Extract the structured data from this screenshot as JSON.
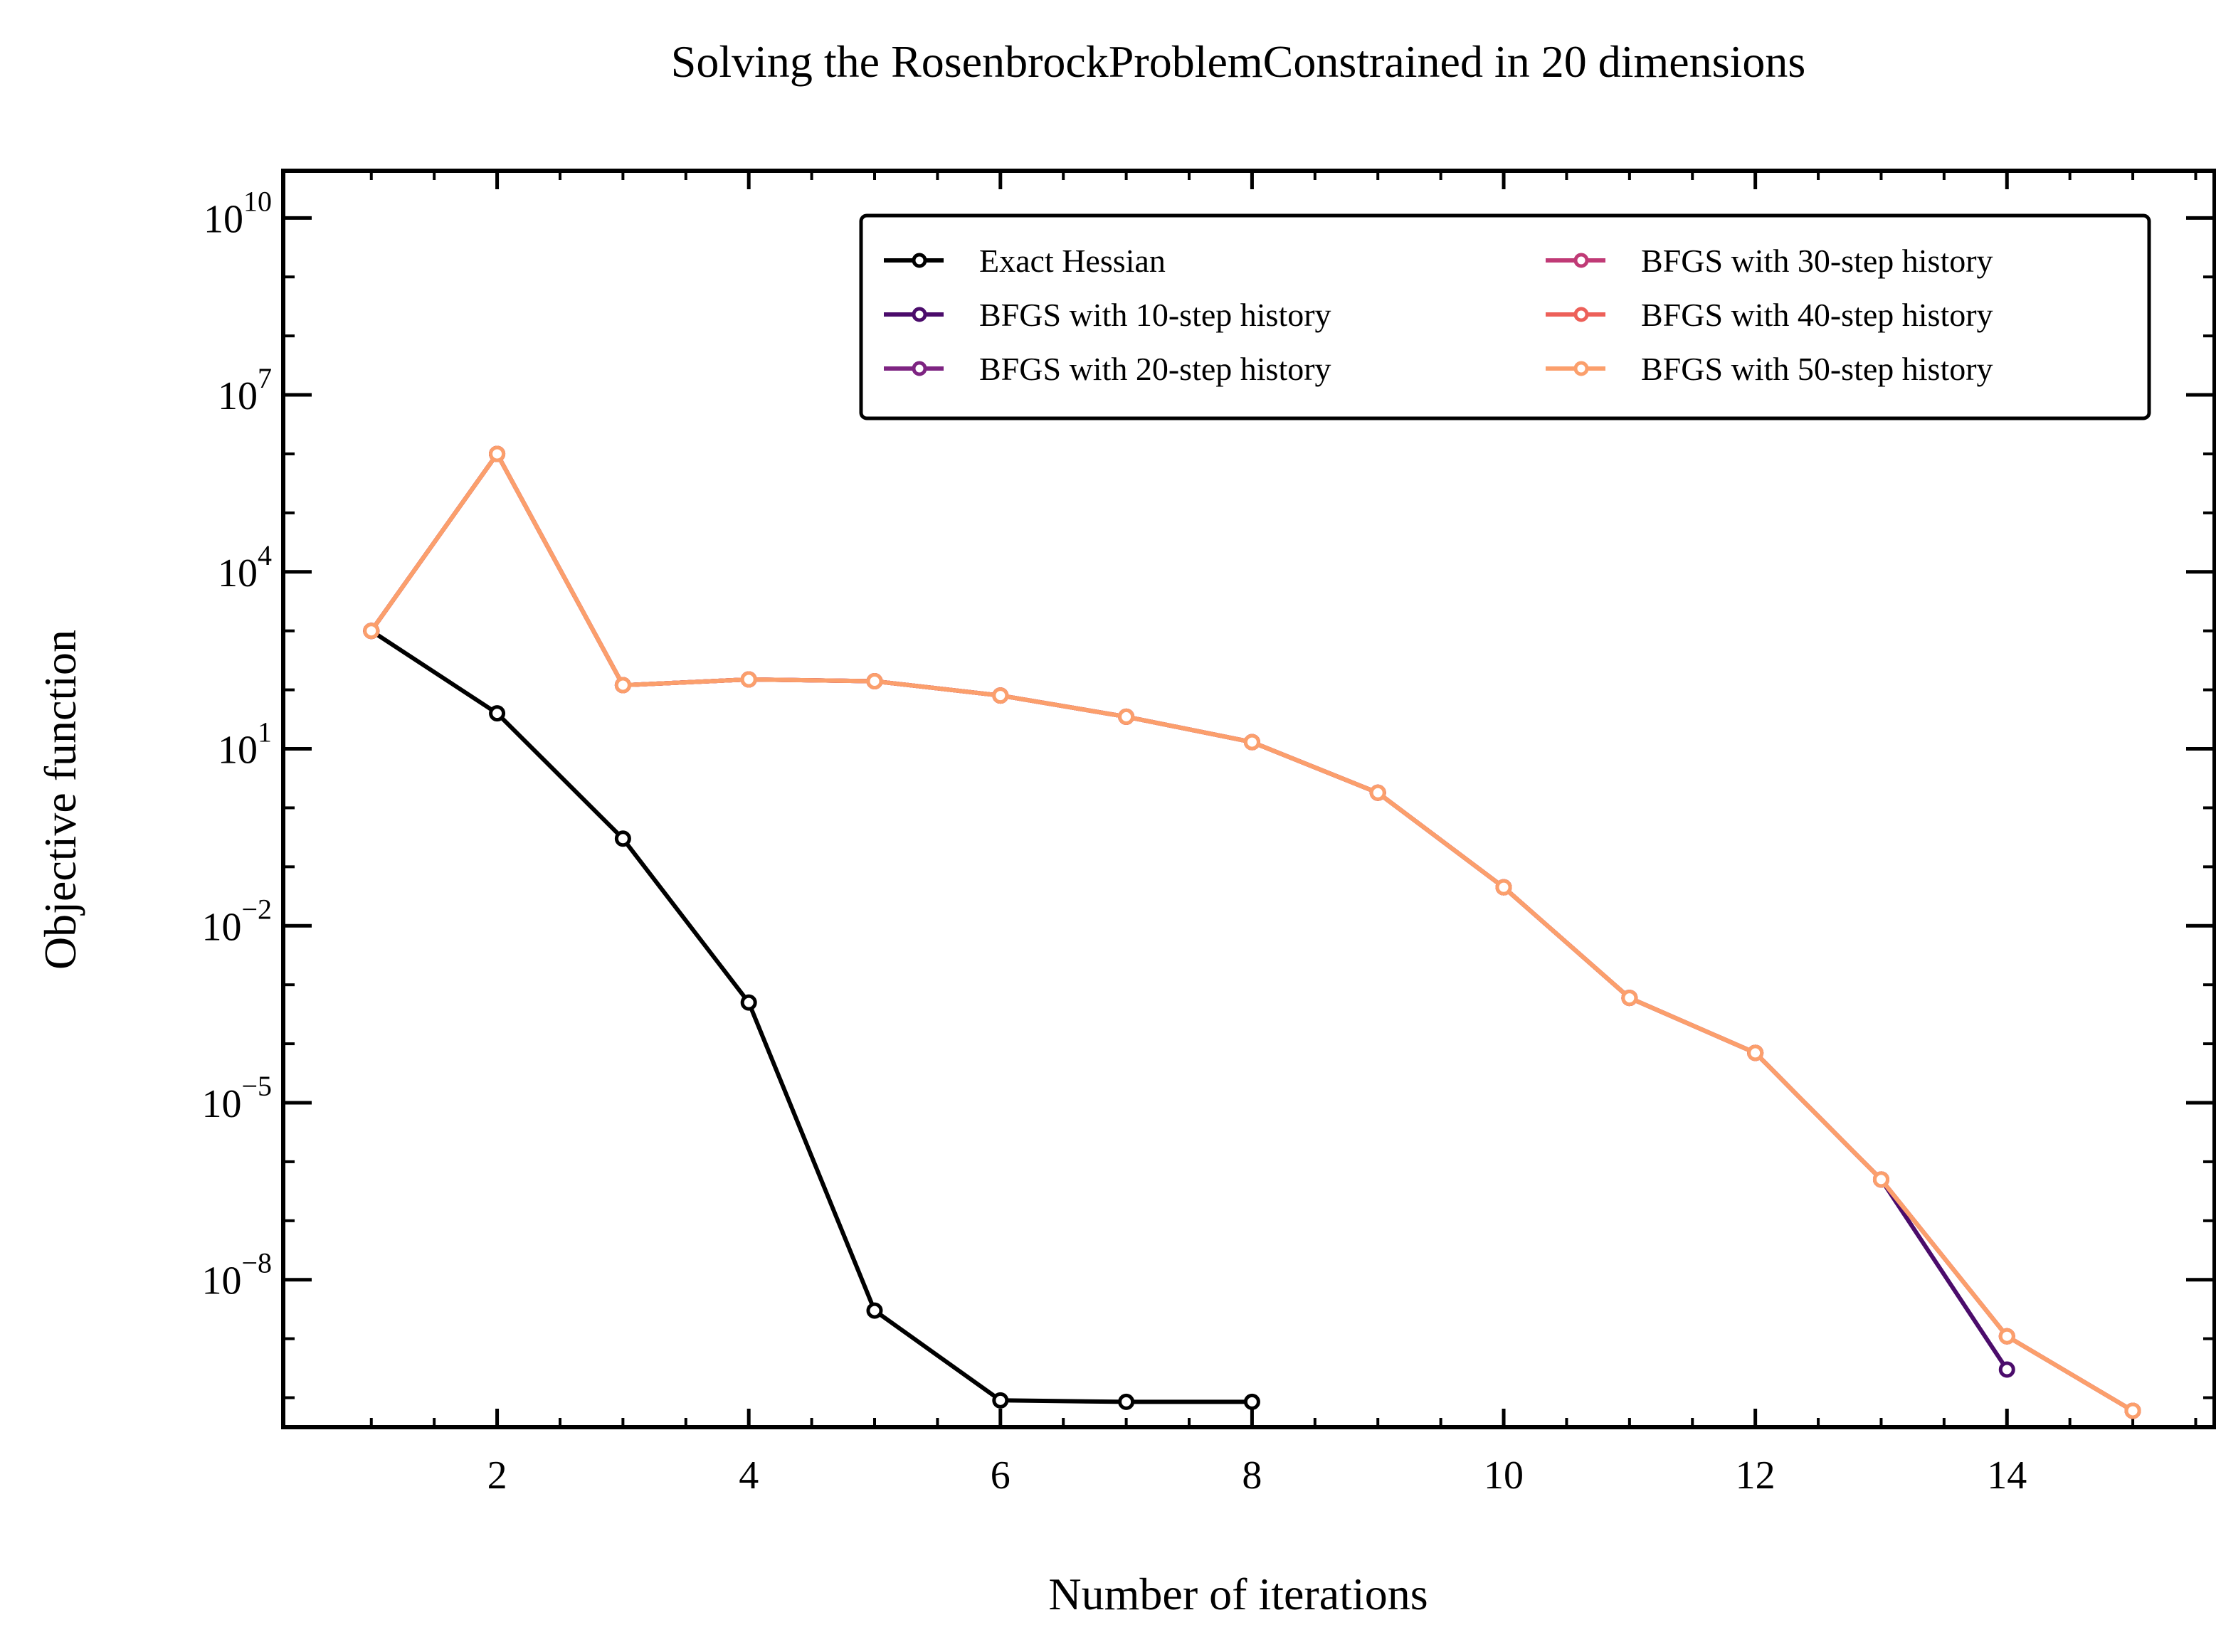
{
  "chart_data": {
    "type": "line",
    "title": "Solving the RosenbrockProblemConstrained in 20 dimensions",
    "xlabel": "Number of iterations",
    "ylabel": "Objective function",
    "xlim": [
      0.3,
      15.65
    ],
    "ylim_log10": [
      -10.5,
      10.8
    ],
    "yscale": "log",
    "x_ticks": [
      2,
      4,
      6,
      8,
      10,
      12,
      14
    ],
    "x_tick_labels": [
      "2",
      "4",
      "6",
      "8",
      "10",
      "12",
      "14"
    ],
    "y_ticks": [
      {
        "base": "10",
        "exp": "10"
      },
      {
        "base": "10",
        "exp": "7"
      },
      {
        "base": "10",
        "exp": "4"
      },
      {
        "base": "10",
        "exp": "1"
      },
      {
        "base": "10",
        "exp": "−2"
      },
      {
        "base": "10",
        "exp": "−5"
      },
      {
        "base": "10",
        "exp": "−8"
      }
    ],
    "y_tick_exponents": [
      10,
      7,
      4,
      1,
      -2,
      -5,
      -8
    ],
    "legend_location": "upper right",
    "series": [
      {
        "name": "Exact Hessian",
        "color": "#000000",
        "x": [
          1,
          2,
          3,
          4,
          5,
          6,
          7,
          8
        ],
        "y": [
          1000,
          40,
          0.3,
          0.0005,
          3e-09,
          9e-11,
          8.5e-11,
          8.5e-11
        ]
      },
      {
        "name": "BFGS with 10-step history",
        "color": "#4b0c6b",
        "x": [
          1,
          2,
          3,
          4,
          5,
          6,
          7,
          8,
          9,
          10,
          11,
          12,
          13,
          14
        ],
        "y": [
          1000,
          1000000,
          120,
          150,
          140,
          80,
          35,
          13,
          1.8,
          0.045,
          0.0006,
          7e-05,
          5e-07,
          3e-10
        ]
      },
      {
        "name": "BFGS with 20-step history",
        "color": "#7e2482",
        "x": [
          1,
          2,
          3,
          4,
          5,
          6,
          7,
          8,
          9,
          10,
          11,
          12,
          13,
          14,
          15
        ],
        "y": [
          1000,
          1000000,
          120,
          150,
          140,
          80,
          35,
          13,
          1.8,
          0.045,
          0.0006,
          7e-05,
          5e-07,
          1.1e-09,
          6e-11
        ]
      },
      {
        "name": "BFGS with 30-step history",
        "color": "#c03a76",
        "x": [
          1,
          2,
          3,
          4,
          5,
          6,
          7,
          8,
          9,
          10,
          11,
          12,
          13,
          14,
          15
        ],
        "y": [
          1000,
          1000000,
          120,
          150,
          140,
          80,
          35,
          13,
          1.8,
          0.045,
          0.0006,
          7e-05,
          5e-07,
          1.1e-09,
          6e-11
        ]
      },
      {
        "name": "BFGS with 40-step history",
        "color": "#ed6059",
        "x": [
          1,
          2,
          3,
          4,
          5,
          6,
          7,
          8,
          9,
          10,
          11,
          12,
          13,
          14,
          15
        ],
        "y": [
          1000,
          1000000,
          120,
          150,
          140,
          80,
          35,
          13,
          1.8,
          0.045,
          0.0006,
          7e-05,
          5e-07,
          1.1e-09,
          6e-11
        ]
      },
      {
        "name": "BFGS with 50-step history",
        "color": "#fb9f6c",
        "x": [
          1,
          2,
          3,
          4,
          5,
          6,
          7,
          8,
          9,
          10,
          11,
          12,
          13,
          14,
          15
        ],
        "y": [
          1000,
          1000000,
          120,
          150,
          140,
          80,
          35,
          13,
          1.8,
          0.045,
          0.0006,
          7e-05,
          5e-07,
          1.1e-09,
          6e-11
        ]
      }
    ]
  }
}
